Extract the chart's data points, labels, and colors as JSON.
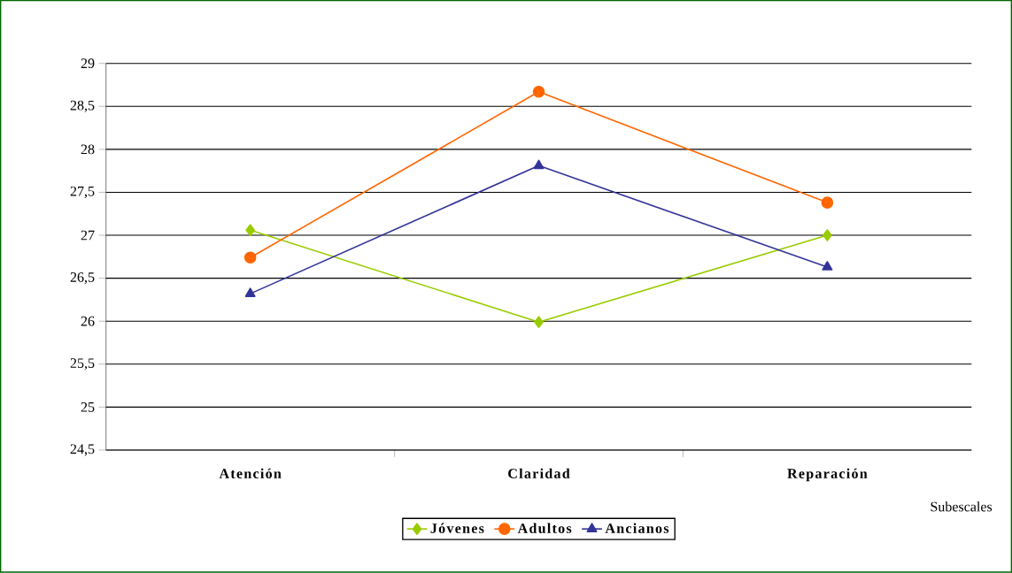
{
  "chart_data": {
    "type": "line",
    "xlabel": "Subescales",
    "categories": [
      "Atención",
      "Claridad",
      "Reparación"
    ],
    "series": [
      {
        "name": "Jóvenes",
        "color": "#99cc00",
        "marker": "diamond",
        "values": [
          27.06,
          25.99,
          27.0
        ]
      },
      {
        "name": "Adultos",
        "color": "#ff6600",
        "marker": "circle",
        "values": [
          26.74,
          28.67,
          27.38
        ]
      },
      {
        "name": "Ancianos",
        "color": "#333399",
        "marker": "triangle",
        "values": [
          26.32,
          27.81,
          26.63
        ]
      }
    ],
    "ylim": [
      24.5,
      29
    ],
    "yticks": [
      {
        "value": 24.5,
        "label": "24,5"
      },
      {
        "value": 25,
        "label": "25"
      },
      {
        "value": 25.5,
        "label": "25,5"
      },
      {
        "value": 26,
        "label": "26"
      },
      {
        "value": 26.5,
        "label": "26,5"
      },
      {
        "value": 27,
        "label": "27"
      },
      {
        "value": 27.5,
        "label": "27,5"
      },
      {
        "value": 28,
        "label": "28"
      },
      {
        "value": 28.5,
        "label": "28,5"
      },
      {
        "value": 29,
        "label": "29"
      }
    ],
    "grid": "y",
    "legend": "bottom",
    "line_style": "solid"
  }
}
